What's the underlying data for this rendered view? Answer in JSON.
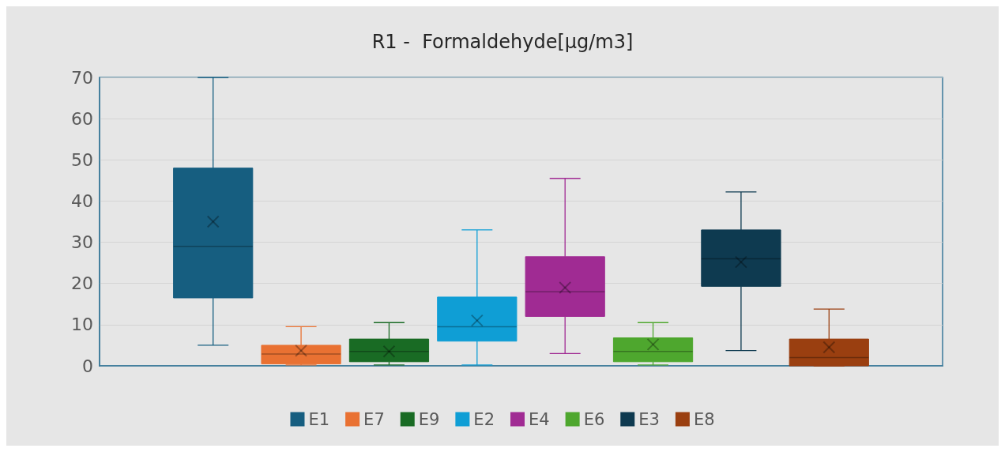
{
  "chart_data": {
    "type": "box",
    "title": "R1 -  Formaldehyde[µg/m3]",
    "categories": [
      null
    ],
    "tick_labels": "y",
    "ylim": [
      0,
      70
    ],
    "yticks": [
      0,
      10,
      20,
      30,
      40,
      50,
      60,
      70
    ],
    "grid": "y",
    "legend": "bottom",
    "marker": "cross",
    "series": [
      {
        "name": "E1",
        "color": "#165e80",
        "boxes": [
          {
            "low": 5,
            "q1": 16.5,
            "median": 29,
            "q3": 48,
            "high": 70,
            "mean": 35
          }
        ]
      },
      {
        "name": "E7",
        "color": "#e97132",
        "boxes": [
          {
            "low": 0.2,
            "q1": 0.5,
            "median": 2.9,
            "q3": 5,
            "high": 9.5,
            "mean": 3.7
          }
        ]
      },
      {
        "name": "E9",
        "color": "#196b24",
        "boxes": [
          {
            "low": 0.2,
            "q1": 1,
            "median": 3.5,
            "q3": 6.5,
            "high": 10.5,
            "mean": 3.5
          }
        ]
      },
      {
        "name": "E2",
        "color": "#0f9ed5",
        "boxes": [
          {
            "low": 0.2,
            "q1": 6,
            "median": 9.5,
            "q3": 16.7,
            "high": 33,
            "mean": 11
          }
        ]
      },
      {
        "name": "E4",
        "color": "#a02b93",
        "boxes": [
          {
            "low": 3,
            "q1": 12,
            "median": 18,
            "q3": 26.5,
            "high": 45.5,
            "mean": 19
          }
        ]
      },
      {
        "name": "E6",
        "color": "#4ea72e",
        "boxes": [
          {
            "low": 0.2,
            "q1": 1,
            "median": 3.5,
            "q3": 6.8,
            "high": 10.5,
            "mean": 5.2
          }
        ]
      },
      {
        "name": "E3",
        "color": "#0e3a50",
        "boxes": [
          {
            "low": 3.7,
            "q1": 19.3,
            "median": 26,
            "q3": 33,
            "high": 42.2,
            "mean": 25.2
          }
        ]
      },
      {
        "name": "E8",
        "color": "#9a3f10",
        "boxes": [
          {
            "low": 0,
            "q1": 0,
            "median": 2,
            "q3": 6.5,
            "high": 13.8,
            "mean": 4.5
          }
        ]
      }
    ]
  }
}
